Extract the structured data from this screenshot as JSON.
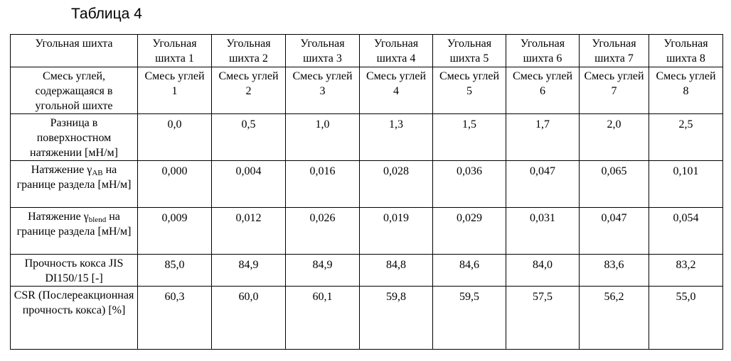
{
  "caption": "Таблица 4",
  "table": {
    "rows": [
      {
        "label": "Угольная шихта",
        "cells": [
          "Угольная шихта 1",
          "Угольная шихта 2",
          "Угольная шихта 3",
          "Угольная шихта 4",
          "Угольная шихта 5",
          "Угольная шихта 6",
          "Угольная шихта 7",
          "Угольная шихта 8"
        ]
      },
      {
        "label": "Смесь углей, содержащаяся в угольной шихте",
        "cells": [
          "Смесь углей 1",
          "Смесь углей 2",
          "Смесь углей 3",
          "Смесь углей 4",
          "Смесь углей 5",
          "Смесь углей 6",
          "Смесь углей 7",
          "Смесь углей 8"
        ]
      },
      {
        "label": "Разница в поверхностном натяжении [мН/м]",
        "cells": [
          "0,0",
          "0,5",
          "1,0",
          "1,3",
          "1,5",
          "1,7",
          "2,0",
          "2,5"
        ]
      },
      {
        "label_before": "Натяжение γ",
        "label_sub": "AB",
        "label_after": " на границе раздела [мН/м]",
        "cells": [
          "0,000",
          "0,004",
          "0,016",
          "0,028",
          "0,036",
          "0,047",
          "0,065",
          "0,101"
        ]
      },
      {
        "label_before": "Натяжение γ",
        "label_sub": "blend",
        "label_after": " на границе раздела [мН/м]",
        "cells": [
          "0,009",
          "0,012",
          "0,026",
          "0,019",
          "0,029",
          "0,031",
          "0,047",
          "0,054"
        ]
      },
      {
        "label": "Прочность кокса JIS DI150/15 [-]",
        "cells": [
          "85,0",
          "84,9",
          "84,9",
          "84,8",
          "84,6",
          "84,0",
          "83,6",
          "83,2"
        ]
      },
      {
        "label": "CSR (Послереакционная прочность кокса) [%]",
        "cells": [
          "60,3",
          "60,0",
          "60,1",
          "59,8",
          "59,5",
          "57,5",
          "56,2",
          "55,0"
        ]
      }
    ]
  }
}
